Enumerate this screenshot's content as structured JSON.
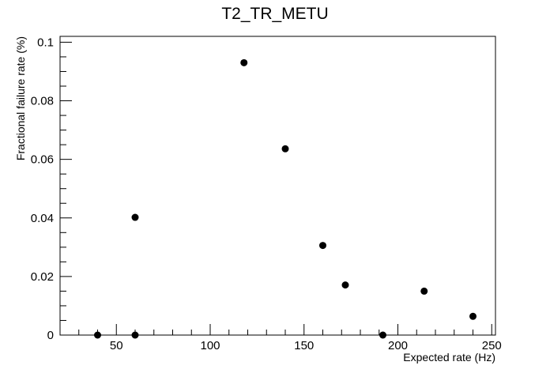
{
  "chart_data": {
    "type": "scatter",
    "title": "T2_TR_METU",
    "xlabel": "Expected rate (Hz)",
    "ylabel": "Fractional failure rate (%)",
    "xlim": [
      20,
      252
    ],
    "ylim": [
      0,
      0.102
    ],
    "x_ticks": [
      50,
      100,
      150,
      200,
      250
    ],
    "x_tick_labels": [
      "50",
      "100",
      "150",
      "200",
      "250"
    ],
    "y_ticks": [
      0,
      0.02,
      0.04,
      0.06,
      0.08,
      0.1
    ],
    "y_tick_labels": [
      "0",
      "0.02",
      "0.04",
      "0.06",
      "0.08",
      "0.1"
    ],
    "grid": false,
    "legend": "none",
    "marker_color": "#000000",
    "points": [
      {
        "x": 40,
        "y": 0.0
      },
      {
        "x": 60,
        "y": 0.0
      },
      {
        "x": 60,
        "y": 0.0402
      },
      {
        "x": 118,
        "y": 0.093
      },
      {
        "x": 140,
        "y": 0.0636
      },
      {
        "x": 160,
        "y": 0.0306
      },
      {
        "x": 172,
        "y": 0.0171
      },
      {
        "x": 192,
        "y": 0.0
      },
      {
        "x": 214,
        "y": 0.015
      },
      {
        "x": 240,
        "y": 0.0064
      }
    ]
  }
}
